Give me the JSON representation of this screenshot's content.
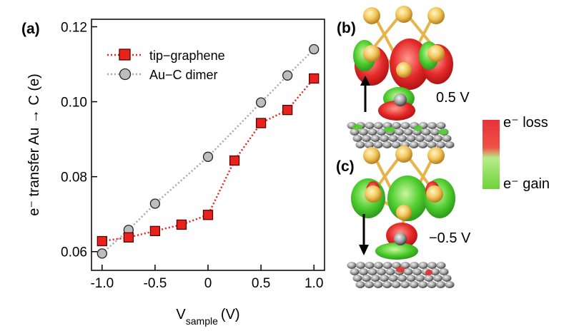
{
  "panels": {
    "a": "(a)",
    "b": "(b)",
    "c": "(c)"
  },
  "chart_data": {
    "type": "line",
    "title": "",
    "xlabel_main": "V",
    "xlabel_sub": "sample",
    "xlabel_unit": "(V)",
    "ylabel": "e⁻ transfer Au → C (e)",
    "xlim": [
      -1.1,
      1.1
    ],
    "ylim": [
      0.055,
      0.122
    ],
    "xticks": [
      -1.0,
      -0.5,
      0,
      0.5,
      1.0
    ],
    "xtick_labels": [
      "-1.0",
      "-0.5",
      "0",
      "0.5",
      "1.0"
    ],
    "yticks": [
      0.06,
      0.08,
      0.1,
      0.12
    ],
    "ytick_labels": [
      "0.06",
      "0.08",
      "0.10",
      "0.12"
    ],
    "grid": false,
    "legend_position": "top-left",
    "series": [
      {
        "name": "tip−graphene",
        "marker": "square",
        "color": "#e8231e",
        "line": "dotted",
        "x": [
          -1.0,
          -0.75,
          -0.5,
          -0.25,
          0.0,
          0.25,
          0.5,
          0.75,
          1.0
        ],
        "y": [
          0.0628,
          0.0638,
          0.0655,
          0.0672,
          0.0698,
          0.0843,
          0.0943,
          0.0978,
          0.1062
        ]
      },
      {
        "name": "Au−C dimer",
        "marker": "circle",
        "color": "#a8a8a8",
        "line": "dotted",
        "x": [
          -1.0,
          -0.75,
          -0.5,
          0.0,
          0.5,
          0.75,
          1.0
        ],
        "y": [
          0.0595,
          0.0658,
          0.0728,
          0.0853,
          0.0998,
          0.107,
          0.114
        ]
      }
    ]
  },
  "side_panels": {
    "b_voltage": "0.5 V",
    "c_voltage": "−0.5 V"
  },
  "colorbar": {
    "top_label": "e⁻ loss",
    "bottom_label": "e⁻ gain",
    "loss_color": "#e8323a",
    "gain_color": "#7ed63a"
  }
}
